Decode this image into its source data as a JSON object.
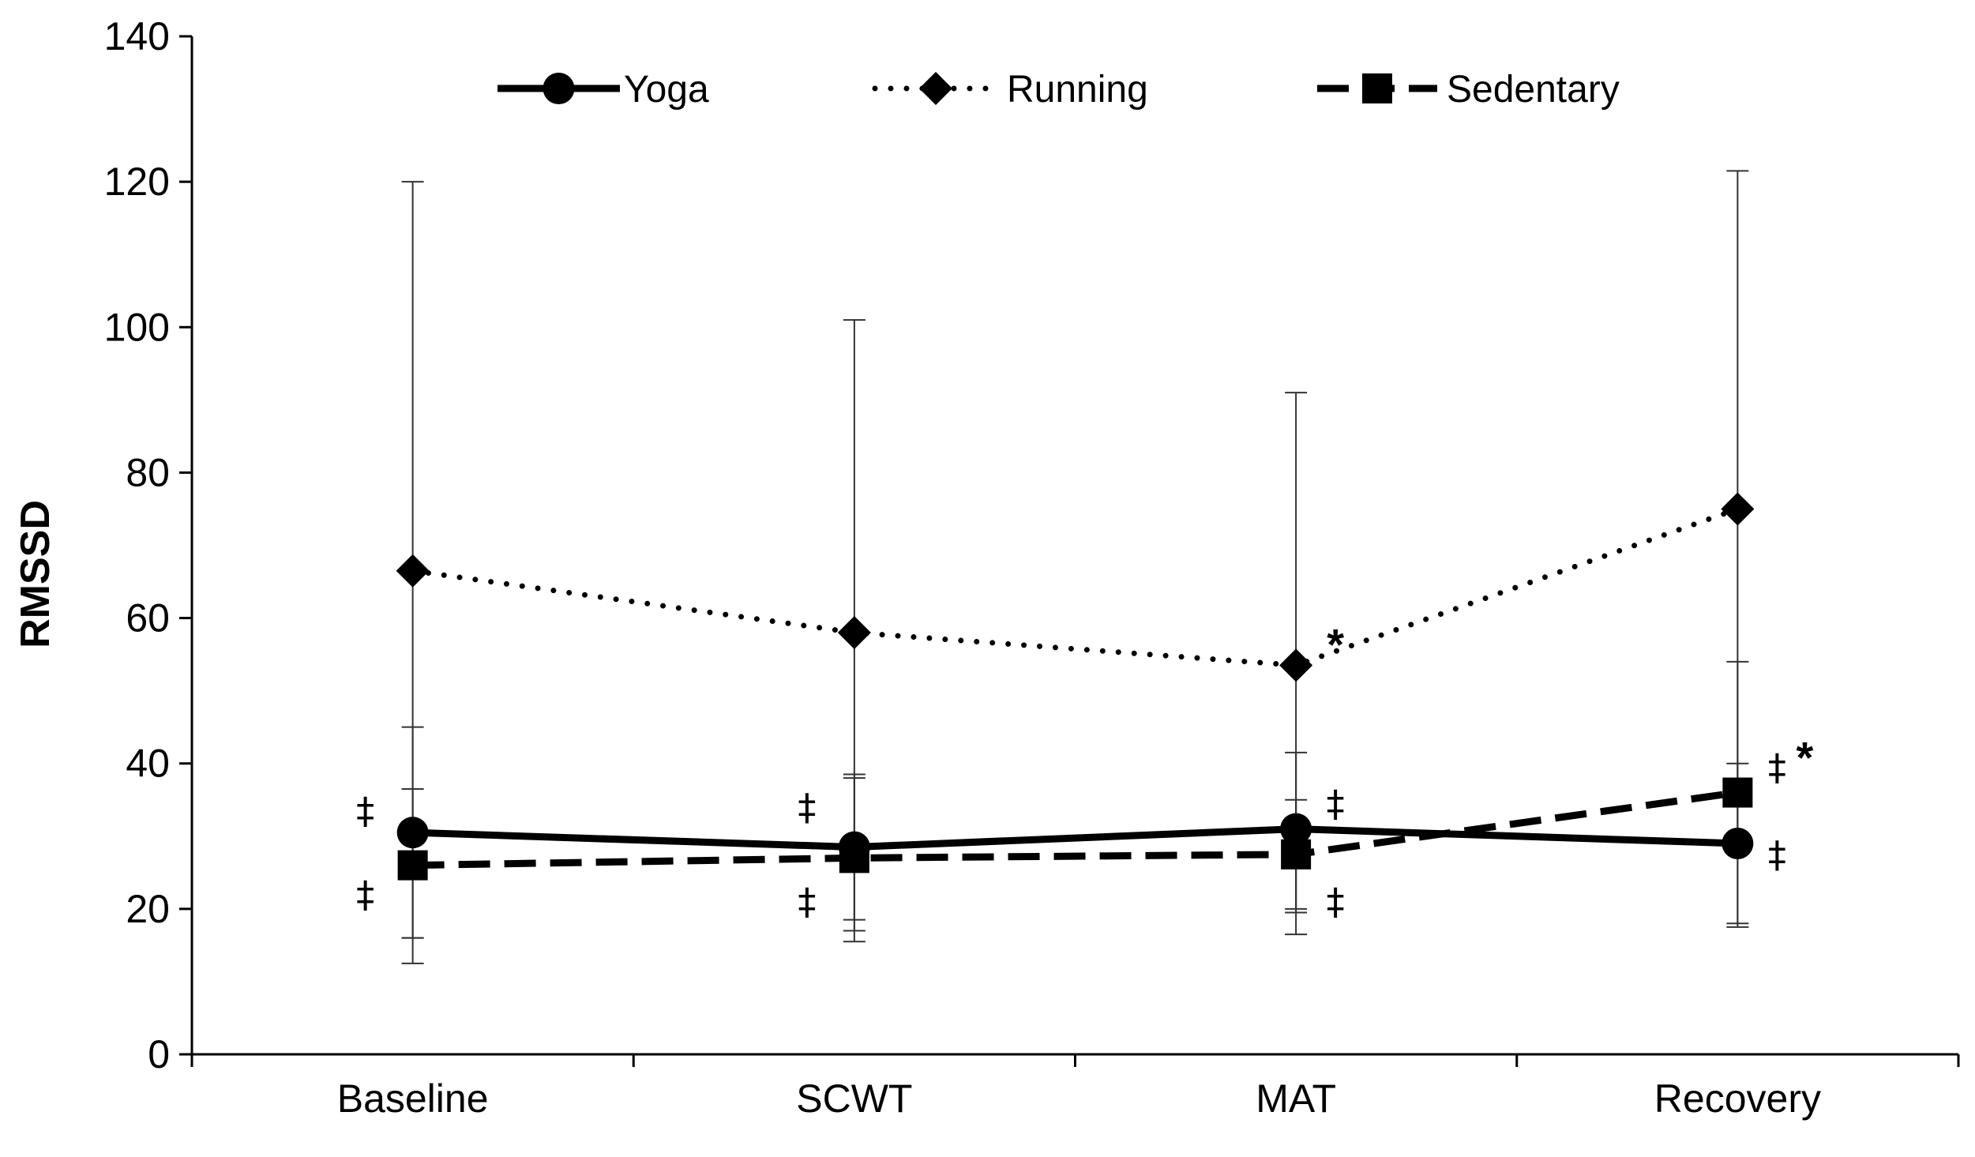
{
  "chart_data": {
    "type": "line",
    "title": "",
    "xlabel": "",
    "ylabel": "RMSSD",
    "ylim": [
      0,
      140
    ],
    "yticks": [
      0,
      20,
      40,
      60,
      80,
      100,
      120,
      140
    ],
    "grid": false,
    "legend_position": "top-center",
    "categories": [
      "Baseline",
      "SCWT",
      "MAT",
      "Recovery"
    ],
    "series": [
      {
        "name": "Yoga",
        "marker": "circle",
        "line_style": "solid",
        "values": [
          30.5,
          28.5,
          31,
          29
        ],
        "error_upper": [
          45,
          38.5,
          41.5,
          40
        ],
        "error_lower": [
          16,
          18.5,
          20,
          18
        ]
      },
      {
        "name": "Running",
        "marker": "diamond",
        "line_style": "dotted",
        "values": [
          66.5,
          58,
          53.5,
          75
        ],
        "error_upper": [
          120,
          101,
          91,
          121.5
        ],
        "error_lower": [
          12.5,
          15.5,
          16.5,
          29
        ]
      },
      {
        "name": "Sedentary",
        "marker": "square",
        "line_style": "dashed",
        "values": [
          26,
          27,
          27.5,
          36
        ],
        "error_upper": [
          36.5,
          38,
          35,
          54
        ],
        "error_lower": [
          16,
          17,
          19.5,
          17.5
        ]
      }
    ],
    "annotations": [
      {
        "text": "‡",
        "category": "Baseline",
        "y": 33.5,
        "side": "left"
      },
      {
        "text": "‡",
        "category": "Baseline",
        "y": 22,
        "side": "left"
      },
      {
        "text": "‡",
        "category": "SCWT",
        "y": 34,
        "side": "left"
      },
      {
        "text": "‡",
        "category": "SCWT",
        "y": 21,
        "side": "left"
      },
      {
        "text": "*",
        "category": "MAT",
        "y": 57.5,
        "side": "right"
      },
      {
        "text": "‡",
        "category": "MAT",
        "y": 34.5,
        "side": "right"
      },
      {
        "text": "‡",
        "category": "MAT",
        "y": 21,
        "side": "right"
      },
      {
        "text": "‡",
        "category": "Recovery",
        "y": 39.5,
        "side": "right"
      },
      {
        "text": "*",
        "category": "Recovery",
        "y": 42,
        "side": "right-far"
      },
      {
        "text": "‡",
        "category": "Recovery",
        "y": 27.5,
        "side": "right"
      }
    ]
  }
}
